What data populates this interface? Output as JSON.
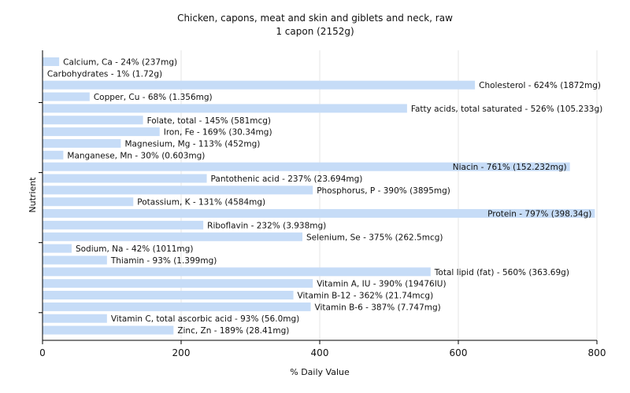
{
  "chart_data": {
    "type": "bar",
    "orientation": "horizontal",
    "title": "Chicken, capons, meat and skin and giblets and neck, raw",
    "subtitle": "1 capon (2152g)",
    "xlabel": "% Daily Value",
    "ylabel": "Nutrient",
    "xlim": [
      0,
      800
    ],
    "xticks": [
      0,
      200,
      400,
      600,
      800
    ],
    "grid": true,
    "bar_color": "#c6dcf7",
    "categories": [
      "Calcium, Ca",
      "Carbohydrates",
      "Cholesterol",
      "Copper, Cu",
      "Fatty acids, total saturated",
      "Folate, total",
      "Iron, Fe",
      "Magnesium, Mg",
      "Manganese, Mn",
      "Niacin",
      "Pantothenic acid",
      "Phosphorus, P",
      "Potassium, K",
      "Protein",
      "Riboflavin",
      "Selenium, Se",
      "Sodium, Na",
      "Thiamin",
      "Total lipid (fat)",
      "Vitamin A, IU",
      "Vitamin B-12",
      "Vitamin B-6",
      "Vitamin C, total ascorbic acid",
      "Zinc, Zn"
    ],
    "values": [
      24,
      1,
      624,
      68,
      526,
      145,
      169,
      113,
      30,
      761,
      237,
      390,
      131,
      797,
      232,
      375,
      42,
      93,
      560,
      390,
      362,
      387,
      93,
      189
    ],
    "labels": [
      "Calcium, Ca - 24% (237mg)",
      "Carbohydrates - 1% (1.72g)",
      "Cholesterol - 624% (1872mg)",
      "Copper, Cu - 68% (1.356mg)",
      "Fatty acids, total saturated - 526% (105.233g)",
      "Folate, total - 145% (581mcg)",
      "Iron, Fe - 169% (30.34mg)",
      "Magnesium, Mg - 113% (452mg)",
      "Manganese, Mn - 30% (0.603mg)",
      "Niacin - 761% (152.232mg)",
      "Pantothenic acid - 237% (23.694mg)",
      "Phosphorus, P - 390% (3895mg)",
      "Potassium, K - 131% (4584mg)",
      "Protein - 797% (398.34g)",
      "Riboflavin - 232% (3.938mg)",
      "Selenium, Se - 375% (262.5mcg)",
      "Sodium, Na - 42% (1011mg)",
      "Thiamin - 93% (1.399mg)",
      "Total lipid (fat) - 560% (363.69g)",
      "Vitamin A, IU - 390% (19476IU)",
      "Vitamin B-12 - 362% (21.74mcg)",
      "Vitamin B-6 - 387% (7.747mg)",
      "Vitamin C, total ascorbic acid - 93% (56.0mg)",
      "Zinc, Zn - 189% (28.41mg)"
    ]
  }
}
